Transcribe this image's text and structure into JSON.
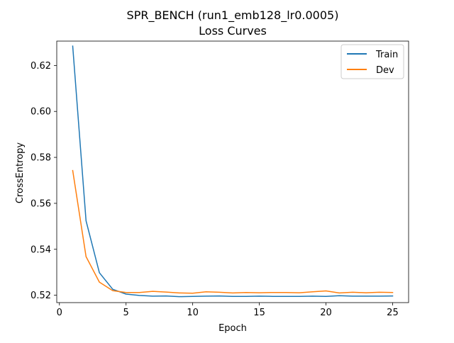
{
  "chart_data": {
    "type": "line",
    "title": "SPR_BENCH (run1_emb128_lr0.0005)",
    "subtitle": "Loss Curves",
    "xlabel": "Epoch",
    "ylabel": "CrossEntropy",
    "xlim": [
      -0.2,
      26.2
    ],
    "ylim": [
      0.5168,
      0.6306
    ],
    "xticks": [
      0,
      5,
      10,
      15,
      20,
      25
    ],
    "yticks": [
      0.52,
      0.54,
      0.56,
      0.58,
      0.6,
      0.62
    ],
    "ytick_labels": [
      "0.52",
      "0.54",
      "0.56",
      "0.58",
      "0.60",
      "0.62"
    ],
    "grid": false,
    "legend_position": "top-right",
    "x": [
      1,
      2,
      3,
      4,
      5,
      6,
      7,
      8,
      9,
      10,
      11,
      12,
      13,
      14,
      15,
      16,
      17,
      18,
      19,
      20,
      21,
      22,
      23,
      24,
      25
    ],
    "series": [
      {
        "name": "Train",
        "color": "#1f77b4",
        "values": [
          0.6284,
          0.5524,
          0.5298,
          0.5226,
          0.5205,
          0.5199,
          0.5196,
          0.5197,
          0.5194,
          0.5195,
          0.5196,
          0.5197,
          0.5195,
          0.5195,
          0.5196,
          0.5195,
          0.5195,
          0.5195,
          0.5196,
          0.5195,
          0.5198,
          0.5196,
          0.5196,
          0.5196,
          0.5197
        ]
      },
      {
        "name": "Dev",
        "color": "#ff7f0e",
        "values": [
          0.5743,
          0.5368,
          0.5257,
          0.522,
          0.5212,
          0.5212,
          0.5217,
          0.5214,
          0.521,
          0.5209,
          0.5215,
          0.5213,
          0.521,
          0.5212,
          0.5211,
          0.5212,
          0.5212,
          0.5211,
          0.5215,
          0.5219,
          0.521,
          0.5213,
          0.5211,
          0.5213,
          0.5212
        ]
      }
    ]
  }
}
